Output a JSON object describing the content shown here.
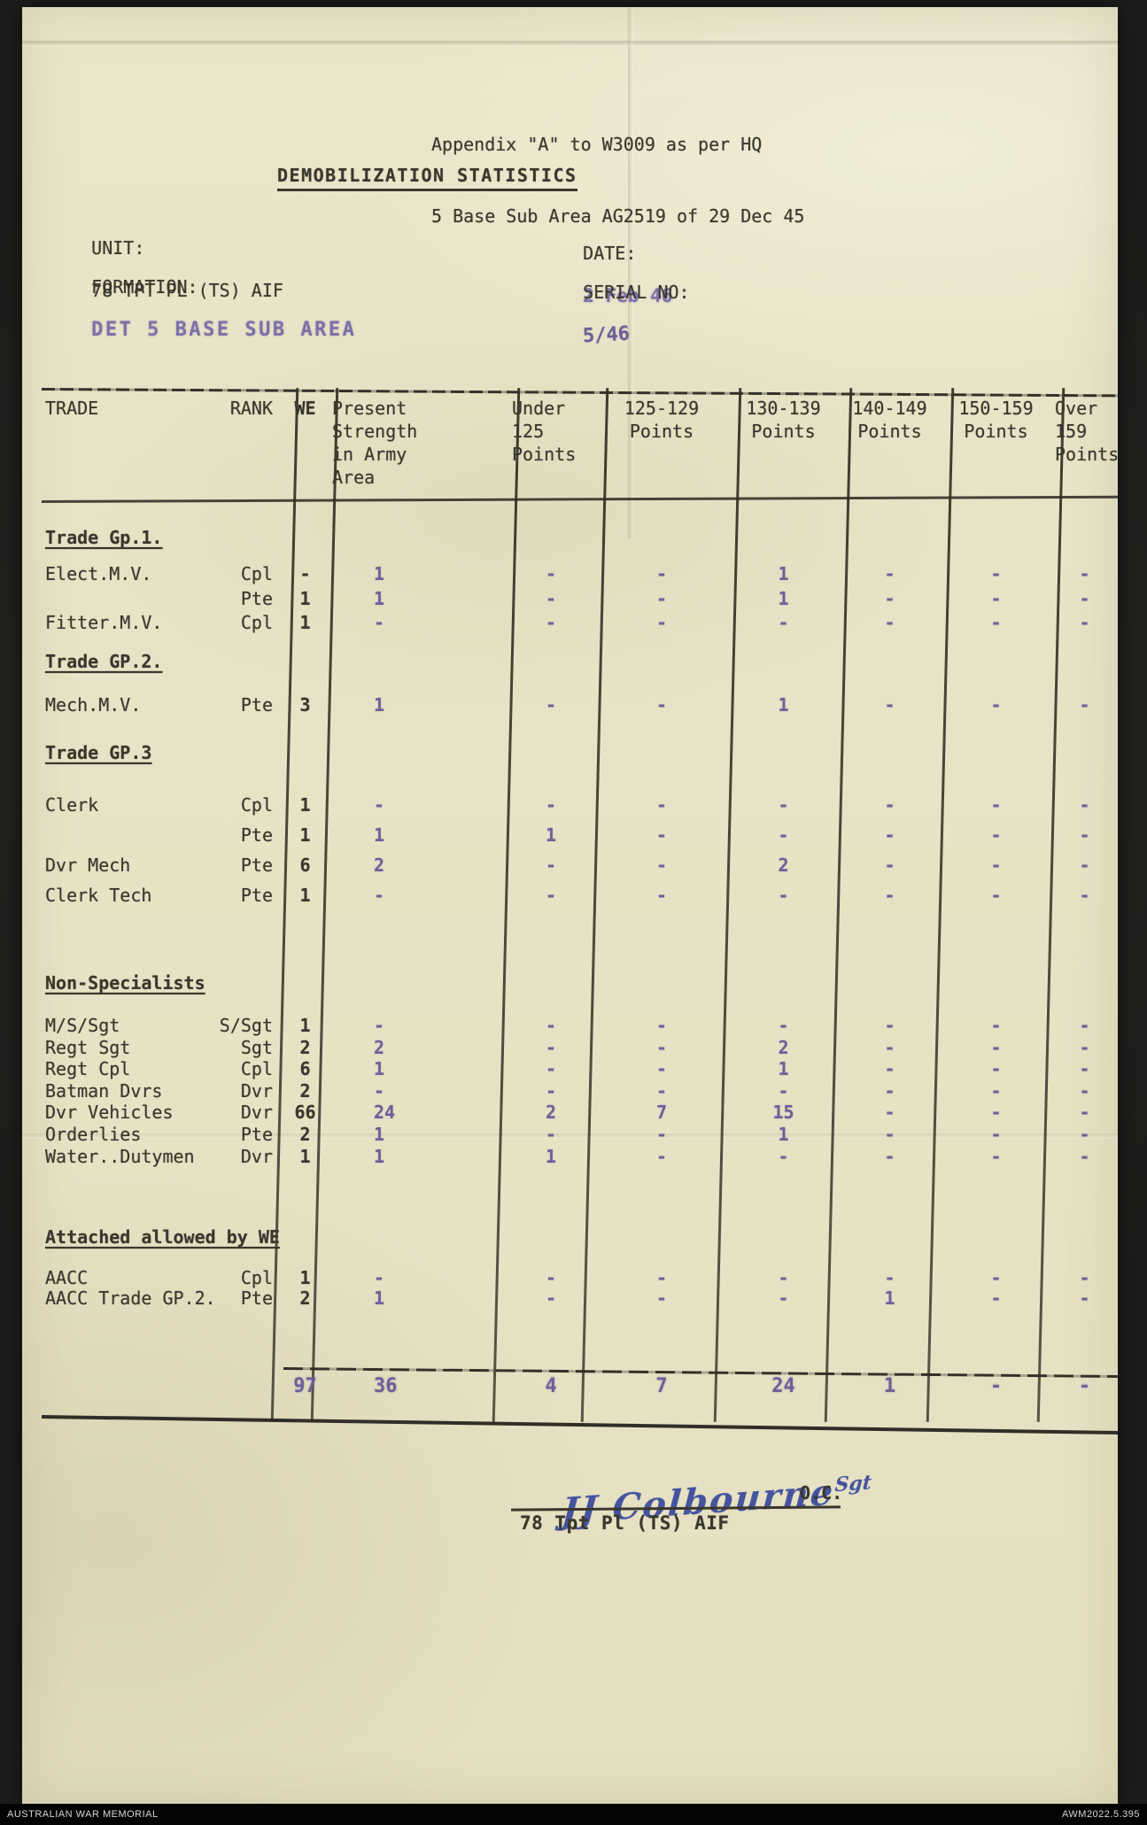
{
  "header": {
    "appendix_line1": "Appendix \"A\" to W3009 as per HQ",
    "appendix_line2": "5 Base Sub Area AG2519 of 29 Dec 45",
    "title": "DEMOBILIZATION STATISTICS"
  },
  "fields": {
    "unit_label": "UNIT:",
    "unit_value": "78 TPT PL (TS) AIF",
    "date_label": "DATE:",
    "date_value": "2 Feb 46",
    "formation_label": "FORMATION:",
    "formation_value": "DET 5 BASE SUB AREA",
    "serial_label": "SERIAL NO:",
    "serial_value": "5/46"
  },
  "table": {
    "columns": [
      "TRADE",
      "RANK",
      "WE",
      "Present Strength in Army Area",
      "Under 125 Points",
      "125-129 Points",
      "130-139 Points",
      "140-149 Points",
      "150-159 Points",
      "Over 159 Points"
    ],
    "sections": [
      {
        "heading": "Trade Gp.1.",
        "rows": [
          [
            "Elect.M.V.",
            "Cpl",
            "-",
            "1",
            "-",
            "-",
            "1",
            "-",
            "-",
            "-"
          ],
          [
            "",
            "Pte",
            "1",
            "1",
            "-",
            "-",
            "1",
            "-",
            "-",
            "-"
          ],
          [
            "Fitter.M.V.",
            "Cpl",
            "1",
            "-",
            "-",
            "-",
            "-",
            "-",
            "-",
            "-"
          ]
        ]
      },
      {
        "heading": "Trade GP.2.",
        "rows": [
          [
            "Mech.M.V.",
            "Pte",
            "3",
            "1",
            "-",
            "-",
            "1",
            "-",
            "-",
            "-"
          ]
        ]
      },
      {
        "heading": "Trade GP.3",
        "rows": [
          [
            "Clerk",
            "Cpl",
            "1",
            "-",
            "-",
            "-",
            "-",
            "-",
            "-",
            "-"
          ],
          [
            "",
            "Pte",
            "1",
            "1",
            "1",
            "-",
            "-",
            "-",
            "-",
            "-"
          ],
          [
            "Dvr Mech",
            "Pte",
            "6",
            "2",
            "-",
            "-",
            "2",
            "-",
            "-",
            "-"
          ],
          [
            "Clerk Tech",
            "Pte",
            "1",
            "-",
            "-",
            "-",
            "-",
            "-",
            "-",
            "-"
          ]
        ]
      },
      {
        "heading": "Non-Specialists",
        "rows": [
          [
            "M/S/Sgt",
            "S/Sgt",
            "1",
            "-",
            "-",
            "-",
            "-",
            "-",
            "-",
            "-"
          ],
          [
            "Regt Sgt",
            "Sgt",
            "2",
            "2",
            "-",
            "-",
            "2",
            "-",
            "-",
            "-"
          ],
          [
            "Regt Cpl",
            "Cpl",
            "6",
            "1",
            "-",
            "-",
            "1",
            "-",
            "-",
            "-"
          ],
          [
            "Batman Dvrs",
            "Dvr",
            "2",
            "-",
            "-",
            "-",
            "-",
            "-",
            "-",
            "-"
          ],
          [
            "Dvr Vehicles",
            "Dvr",
            "66",
            "24",
            "2",
            "7",
            "15",
            "-",
            "-",
            "-"
          ],
          [
            "Orderlies",
            "Pte",
            "2",
            "1",
            "-",
            "-",
            "1",
            "-",
            "-",
            "-"
          ],
          [
            "Water..Dutymen",
            "Dvr",
            "1",
            "1",
            "1",
            "-",
            "-",
            "-",
            "-",
            "-"
          ]
        ]
      },
      {
        "heading": "Attached allowed by WE",
        "rows": [
          [
            "AACC",
            "Cpl",
            "1",
            "-",
            "-",
            "-",
            "-",
            "-",
            "-",
            "-"
          ],
          [
            "AACC Trade GP.2.",
            "Pte",
            "2",
            "1",
            "-",
            "-",
            "-",
            "1",
            "-",
            "-"
          ]
        ]
      }
    ],
    "totals": [
      "",
      "",
      "97",
      "36",
      "4",
      "7",
      "24",
      "1",
      "-",
      "-"
    ]
  },
  "signature": {
    "name": "JJ Colbourne",
    "rank": "Sgt",
    "title": "O.C.",
    "unit": "78 Tpt Pl (TS) AIF"
  },
  "archive_bar": {
    "left": "AUSTRALIAN WAR MEMORIAL",
    "right": "AWM2022.5.395"
  },
  "ink_colors": {
    "typewriter_black": "#3a372e",
    "stamp_purple": "#7e71a8",
    "value_purple": "#6e6099",
    "pen_blue": "#46549f",
    "paper": "#eae5c9"
  }
}
